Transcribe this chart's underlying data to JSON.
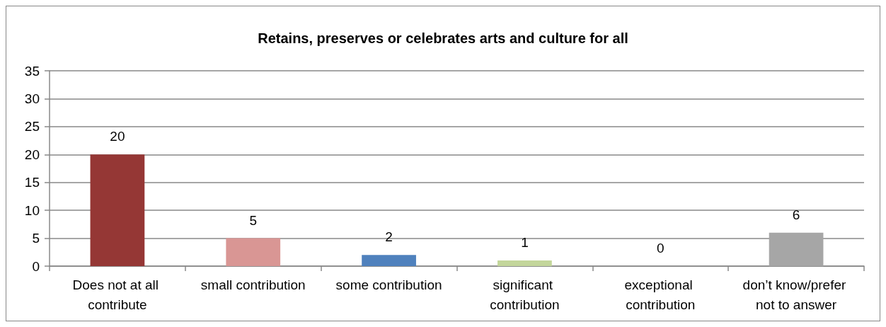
{
  "chart_data": {
    "type": "bar",
    "title": "Retains, preserves or celebrates arts and culture for all",
    "categories": [
      "Does not at all contribute",
      "small contribution",
      "some contribution",
      "significant contribution",
      "exceptional contribution",
      "don’t know/prefer not to answer"
    ],
    "values": [
      20,
      5,
      2,
      1,
      0,
      6
    ],
    "colors": [
      "#953735",
      "#d99694",
      "#4f81bd",
      "#c3d69b",
      "#8064a2",
      "#a6a6a6"
    ],
    "ylim": [
      0,
      35
    ],
    "yticks": [
      0,
      5,
      10,
      15,
      20,
      25,
      30,
      35
    ],
    "grid": "y",
    "data_labels": true
  }
}
